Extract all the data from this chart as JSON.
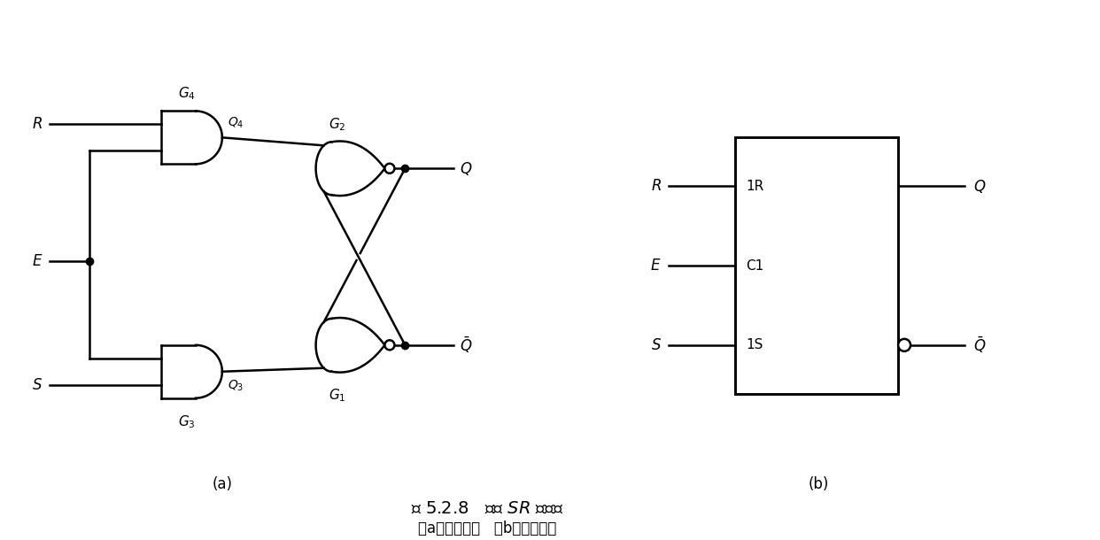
{
  "title_main": "图 5.2.8   门控 SR 锁存器",
  "subtitle": "（a）逻辑电路   （b）逻辑符号",
  "label_a": "(a)",
  "label_b": "(b)",
  "bg_color": "#ffffff",
  "line_color": "#000000",
  "font_size_label": 12,
  "font_size_title": 14,
  "font_size_subtitle": 12
}
